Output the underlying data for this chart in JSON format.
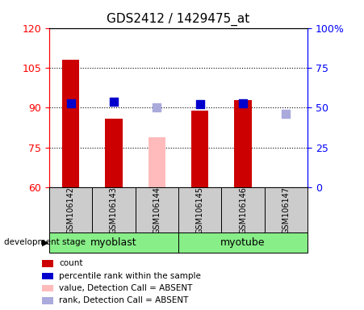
{
  "title": "GDS2412 / 1429475_at",
  "samples": [
    "GSM106142",
    "GSM106143",
    "GSM106144",
    "GSM106145",
    "GSM106146",
    "GSM106147"
  ],
  "bar_values": [
    108.0,
    86.0,
    null,
    89.0,
    93.0,
    null
  ],
  "absent_bar_values": [
    null,
    null,
    79.0,
    null,
    null,
    null
  ],
  "rank_values_pct": [
    53.0,
    54.0,
    null,
    52.0,
    53.0,
    null
  ],
  "absent_rank_values_pct": [
    null,
    null,
    50.0,
    null,
    null,
    46.0
  ],
  "ylim_left": [
    60,
    120
  ],
  "ylim_right": [
    0,
    100
  ],
  "yticks_left": [
    60,
    75,
    90,
    105,
    120
  ],
  "ytick_labels_left": [
    "60",
    "75",
    "90",
    "105",
    "120"
  ],
  "yticks_right_pct": [
    0,
    25,
    50,
    75,
    100
  ],
  "ytick_labels_right": [
    "0",
    "25",
    "50",
    "75",
    "100%"
  ],
  "bar_width": 0.4,
  "dot_size": 45,
  "bar_color_present": "#cc0000",
  "bar_color_absent": "#ffbbbb",
  "dot_color_present": "#0000cc",
  "dot_color_absent": "#aaaadd",
  "group_band_color": "#88ee88",
  "sample_bg_color": "#cccccc",
  "legend_items": [
    {
      "label": "count",
      "color": "#cc0000"
    },
    {
      "label": "percentile rank within the sample",
      "color": "#0000cc"
    },
    {
      "label": "value, Detection Call = ABSENT",
      "color": "#ffbbbb"
    },
    {
      "label": "rank, Detection Call = ABSENT",
      "color": "#aaaadd"
    }
  ]
}
